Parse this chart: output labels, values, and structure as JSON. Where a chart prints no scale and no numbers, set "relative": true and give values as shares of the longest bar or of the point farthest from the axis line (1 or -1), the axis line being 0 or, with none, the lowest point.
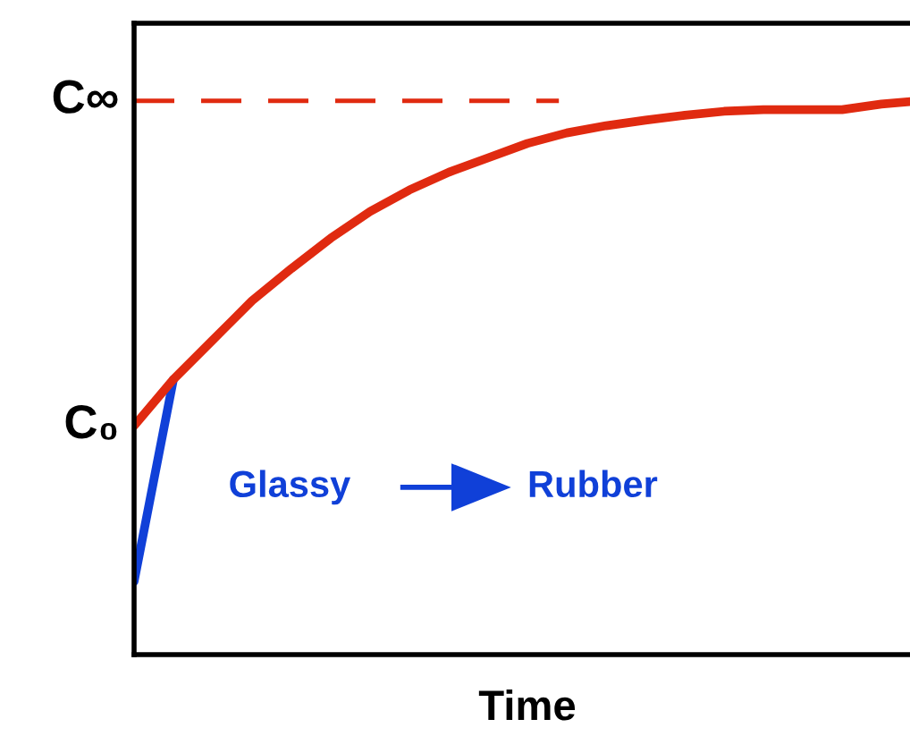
{
  "chart_data": {
    "type": "line",
    "relative": true,
    "xlabel": "Time",
    "categories": [
      null,
      null,
      null,
      null,
      null,
      null,
      null,
      null,
      null,
      null,
      null,
      null,
      null,
      null,
      null,
      null,
      null,
      null,
      null,
      null,
      null
    ],
    "series": [
      {
        "color": "#e02a10",
        "values": [
          0.413,
          0.497,
          0.568,
          0.639,
          0.697,
          0.752,
          0.8,
          0.839,
          0.871,
          0.897,
          0.923,
          0.942,
          0.955,
          0.965,
          0.974,
          0.981,
          0.984,
          0.984,
          0.984,
          0.994,
          1
        ]
      },
      {
        "color": "#1040d8",
        "values": [
          0.132,
          0.497,
          null,
          null,
          null,
          null,
          null,
          null,
          null,
          null,
          null,
          null,
          null,
          null,
          null,
          null,
          null,
          null,
          null,
          null,
          null
        ]
      }
    ],
    "ref_lines": [
      {
        "axis": "y",
        "value": 1,
        "label": "C∞",
        "color": "#e02a10",
        "line_style": "dashed"
      }
    ],
    "annotations": [
      "C₀",
      "Glassy",
      "Rubber"
    ],
    "marker": "none",
    "line_style": "solid"
  }
}
